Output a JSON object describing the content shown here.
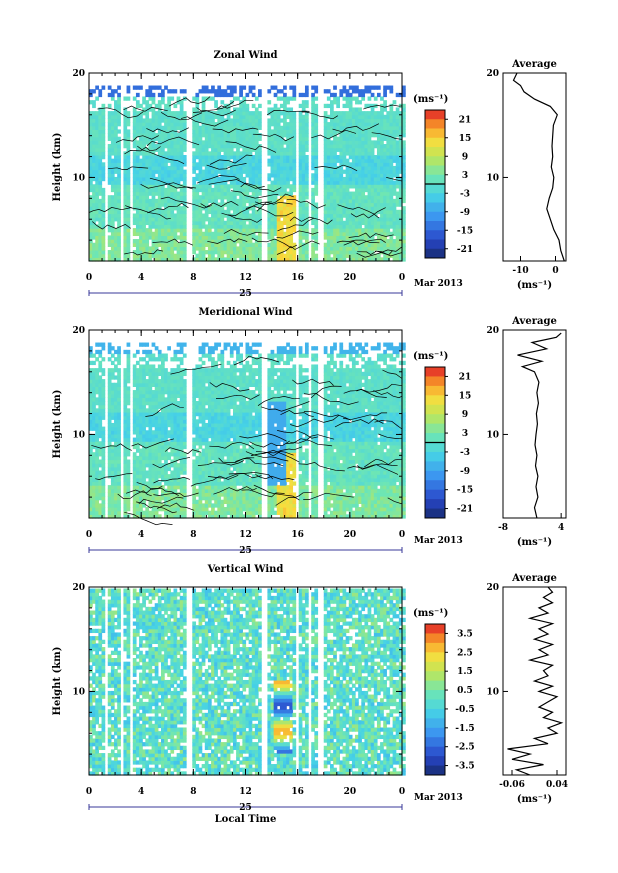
{
  "figure": {
    "date_label": "Mar 2013",
    "day_label": "25",
    "xlabel_bottom": "Local Time"
  },
  "chart_data": [
    {
      "type": "heatmap",
      "title": "Zonal Wind",
      "ylabel": "Height (km)",
      "xlim": [
        0,
        24
      ],
      "ylim": [
        2,
        20
      ],
      "x_ticks": [
        "0",
        "4",
        "8",
        "12",
        "16",
        "20",
        "0"
      ],
      "y_ticks": [
        {
          "v": 10,
          "t": "10"
        },
        {
          "v": 20,
          "t": "20"
        }
      ],
      "colorbar": {
        "unit": "(ms⁻¹)",
        "ticks": [
          "21",
          "15",
          "9",
          "3",
          "-3",
          "-9",
          "-15",
          "-21"
        ],
        "range": [
          -24,
          24
        ],
        "zero_line": true
      },
      "contours": true,
      "gaps": [
        [
          1.0,
          1.4
        ],
        [
          2.2,
          2.6
        ],
        [
          2.9,
          3.2
        ],
        [
          7.3,
          7.7
        ],
        [
          13.2,
          13.6
        ],
        [
          15.7,
          16.0
        ],
        [
          16.6,
          17.0
        ],
        [
          17.5,
          17.8
        ]
      ],
      "average": {
        "title": "Average",
        "xlabel": "(ms⁻¹)",
        "xlim": [
          -15,
          3
        ],
        "x_ticks": [
          {
            "v": -10,
            "t": "-10"
          },
          {
            "v": 0,
            "t": "0"
          }
        ],
        "ylim": [
          2,
          20
        ],
        "y_ticks": [
          {
            "v": 10,
            "t": "10"
          },
          {
            "v": 20,
            "t": "20"
          }
        ],
        "profile": [
          [
            2,
            2.5
          ],
          [
            3,
            1.5
          ],
          [
            4,
            1.0
          ],
          [
            5,
            -0.5
          ],
          [
            6,
            -1.5
          ],
          [
            7,
            -2.5
          ],
          [
            8,
            -1.8
          ],
          [
            9,
            -0.8
          ],
          [
            10,
            -0.5
          ],
          [
            11,
            -1.2
          ],
          [
            12,
            -0.8
          ],
          [
            13,
            -1.0
          ],
          [
            14,
            -0.8
          ],
          [
            15,
            -0.6
          ],
          [
            16,
            0.5
          ],
          [
            16.8,
            -1.5
          ],
          [
            17.5,
            -6
          ],
          [
            18.2,
            -9
          ],
          [
            18.8,
            -10
          ],
          [
            19.3,
            -12
          ],
          [
            20,
            -11
          ]
        ]
      }
    },
    {
      "type": "heatmap",
      "title": "Meridional Wind",
      "ylabel": "Height (km)",
      "xlim": [
        0,
        24
      ],
      "ylim": [
        2,
        20
      ],
      "x_ticks": [
        "0",
        "4",
        "8",
        "12",
        "16",
        "20",
        "0"
      ],
      "y_ticks": [
        {
          "v": 10,
          "t": "10"
        },
        {
          "v": 20,
          "t": "20"
        }
      ],
      "colorbar": {
        "unit": "(ms⁻¹)",
        "ticks": [
          "21",
          "15",
          "9",
          "3",
          "-3",
          "-9",
          "-15",
          "-21"
        ],
        "range": [
          -24,
          24
        ],
        "zero_line": true
      },
      "contours": true,
      "gaps": [
        [
          1.0,
          1.4
        ],
        [
          2.2,
          2.6
        ],
        [
          2.9,
          3.2
        ],
        [
          7.3,
          7.7
        ],
        [
          13.2,
          13.6
        ],
        [
          15.7,
          16.0
        ],
        [
          16.6,
          17.0
        ],
        [
          17.5,
          17.8
        ]
      ],
      "average": {
        "title": "Average",
        "xlabel": "(ms⁻¹)",
        "xlim": [
          -8,
          5
        ],
        "x_ticks": [
          {
            "v": -8,
            "t": "-8"
          },
          {
            "v": 4,
            "t": "4"
          }
        ],
        "ylim": [
          2,
          20
        ],
        "y_ticks": [
          {
            "v": 10,
            "t": "10"
          },
          {
            "v": 20,
            "t": "20"
          }
        ],
        "profile": [
          [
            2,
            -1.0
          ],
          [
            3,
            -1.5
          ],
          [
            4,
            -0.8
          ],
          [
            5,
            -1.2
          ],
          [
            6,
            -0.8
          ],
          [
            7,
            -1.3
          ],
          [
            8,
            -1.0
          ],
          [
            9,
            -1.4
          ],
          [
            10,
            -1.2
          ],
          [
            11,
            -0.9
          ],
          [
            12,
            -1.1
          ],
          [
            13,
            -0.7
          ],
          [
            14,
            -1.0
          ],
          [
            15,
            -0.6
          ],
          [
            16,
            -1.5
          ],
          [
            16.5,
            -4
          ],
          [
            17,
            0
          ],
          [
            17.6,
            -5
          ],
          [
            18.2,
            1
          ],
          [
            18.8,
            -2
          ],
          [
            19.3,
            3
          ],
          [
            19.7,
            4
          ]
        ]
      }
    },
    {
      "type": "heatmap",
      "title": "Vertical Wind",
      "ylabel": "Height (km)",
      "xlabel": "Local Time",
      "xlim": [
        0,
        24
      ],
      "ylim": [
        2,
        20
      ],
      "x_ticks": [
        "0",
        "4",
        "8",
        "12",
        "16",
        "20",
        "0"
      ],
      "y_ticks": [
        {
          "v": 10,
          "t": "10"
        },
        {
          "v": 20,
          "t": "20"
        }
      ],
      "colorbar": {
        "unit": "(ms⁻¹)",
        "ticks": [
          "3.5",
          "2.5",
          "1.5",
          "0.5",
          "-0.5",
          "-1.5",
          "-2.5",
          "-3.5"
        ],
        "range": [
          -4,
          4
        ],
        "zero_line": false
      },
      "contours": false,
      "gaps": [
        [
          1.0,
          1.4
        ],
        [
          2.2,
          2.6
        ],
        [
          2.9,
          3.2
        ],
        [
          7.3,
          7.7
        ],
        [
          13.2,
          13.6
        ],
        [
          15.7,
          16.0
        ],
        [
          16.6,
          17.0
        ],
        [
          17.5,
          17.8
        ]
      ],
      "average": {
        "title": "Average",
        "xlabel": "(ms⁻¹)",
        "xlim": [
          -0.08,
          0.06
        ],
        "x_ticks": [
          {
            "v": -0.06,
            "t": "-0.06"
          },
          {
            "v": 0.04,
            "t": "0.04"
          }
        ],
        "ylim": [
          2,
          20
        ],
        "y_ticks": [
          {
            "v": 10,
            "t": "10"
          },
          {
            "v": 20,
            "t": "20"
          }
        ],
        "profile": [
          [
            2,
            -0.02
          ],
          [
            2.5,
            -0.05
          ],
          [
            3,
            0.01
          ],
          [
            3.5,
            -0.06
          ],
          [
            4,
            -0.02
          ],
          [
            4.5,
            -0.07
          ],
          [
            5,
            0.02
          ],
          [
            5.5,
            -0.01
          ],
          [
            6,
            0.04
          ],
          [
            6.5,
            0.02
          ],
          [
            7,
            0.05
          ],
          [
            7.5,
            0.01
          ],
          [
            8,
            0.03
          ],
          [
            8.5,
            0.0
          ],
          [
            9,
            0.02
          ],
          [
            9.5,
            0.04
          ],
          [
            10,
            0.0
          ],
          [
            10.5,
            0.03
          ],
          [
            11,
            -0.01
          ],
          [
            11.5,
            0.02
          ],
          [
            12,
            0.01
          ],
          [
            12.5,
            0.03
          ],
          [
            13,
            -0.02
          ],
          [
            13.5,
            0.02
          ],
          [
            14,
            0.0
          ],
          [
            14.5,
            0.03
          ],
          [
            15,
            -0.01
          ],
          [
            15.5,
            0.02
          ],
          [
            16,
            0.0
          ],
          [
            16.5,
            0.03
          ],
          [
            17,
            -0.02
          ],
          [
            17.5,
            0.02
          ],
          [
            18,
            0.0
          ],
          [
            18.5,
            0.03
          ],
          [
            19,
            0.01
          ],
          [
            19.5,
            0.03
          ],
          [
            20,
            0.02
          ]
        ]
      }
    }
  ]
}
